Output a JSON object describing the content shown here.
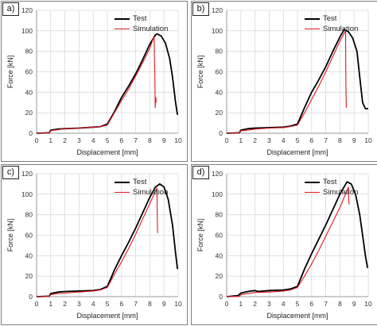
{
  "chart_data": [
    {
      "type": "line",
      "panel_label": "a)",
      "xlabel": "Displacement [mm]",
      "ylabel": "Force [kN]",
      "xlim": [
        0,
        10
      ],
      "ylim": [
        0,
        120
      ],
      "xticks": [
        0,
        1,
        2,
        3,
        4,
        5,
        6,
        7,
        8,
        9,
        10
      ],
      "yticks": [
        0,
        20,
        40,
        60,
        80,
        100,
        120
      ],
      "grid": true,
      "legend_position": "top-right",
      "series": [
        {
          "name": "Test",
          "color": "#000000",
          "x": [
            0,
            0.9,
            1.0,
            1.5,
            2,
            3,
            4,
            4.5,
            5,
            5.5,
            6,
            6.5,
            7,
            7.5,
            8,
            8.4,
            8.5,
            8.8,
            9.1,
            9.4,
            9.6,
            9.8,
            9.95
          ],
          "y": [
            0,
            0.5,
            3,
            4,
            4.5,
            5,
            6,
            6.5,
            9,
            21,
            35,
            46,
            58,
            72,
            87,
            96,
            97,
            95,
            88,
            73,
            55,
            32,
            18
          ]
        },
        {
          "name": "Simulation",
          "color": "#e0191f",
          "x": [
            0,
            0.9,
            1.0,
            1.5,
            2,
            3,
            4,
            4.5,
            5,
            5.5,
            6,
            6.5,
            7,
            7.5,
            8,
            8.3,
            8.35,
            8.38,
            8.42,
            8.45
          ],
          "y": [
            0,
            0.3,
            2.5,
            3.5,
            4.5,
            5,
            6,
            6.5,
            8,
            20,
            32,
            43,
            56,
            69,
            83,
            95,
            60,
            25,
            35,
            30
          ]
        }
      ]
    },
    {
      "type": "line",
      "panel_label": "b)",
      "xlabel": "Displacement [mm]",
      "ylabel": "Force [kN]",
      "xlim": [
        0,
        10
      ],
      "ylim": [
        0,
        120
      ],
      "xticks": [
        0,
        1,
        2,
        3,
        4,
        5,
        6,
        7,
        8,
        9,
        10
      ],
      "yticks": [
        0,
        20,
        40,
        60,
        80,
        100,
        120
      ],
      "grid": true,
      "legend_position": "top-right",
      "series": [
        {
          "name": "Test",
          "color": "#000000",
          "x": [
            0,
            0.9,
            1.0,
            1.5,
            2,
            3,
            4,
            4.5,
            5,
            5.5,
            6,
            6.5,
            7,
            7.5,
            8,
            8.3,
            8.6,
            8.9,
            9.2,
            9.4,
            9.6,
            9.8,
            10
          ],
          "y": [
            0,
            0.5,
            3,
            4.5,
            5,
            5.5,
            6,
            7,
            9,
            25,
            40,
            52,
            65,
            80,
            94,
            101,
            99,
            93,
            80,
            55,
            30,
            24,
            24
          ]
        },
        {
          "name": "Simulation",
          "color": "#e0191f",
          "x": [
            0,
            0.9,
            1.0,
            1.5,
            2,
            3,
            4,
            4.5,
            5,
            5.5,
            6,
            6.5,
            7,
            7.5,
            8,
            8.4,
            8.42,
            8.45
          ],
          "y": [
            0,
            0.3,
            2.5,
            3,
            4,
            5,
            5.5,
            6.5,
            8,
            20,
            33,
            46,
            60,
            75,
            90,
            100,
            45,
            25
          ]
        }
      ]
    },
    {
      "type": "line",
      "panel_label": "c)",
      "xlabel": "Displacement [mm]",
      "ylabel": "Force [kN]",
      "xlim": [
        0,
        10
      ],
      "ylim": [
        0,
        120
      ],
      "xticks": [
        0,
        1,
        2,
        3,
        4,
        5,
        6,
        7,
        8,
        9,
        10
      ],
      "yticks": [
        0,
        20,
        40,
        60,
        80,
        100,
        120
      ],
      "grid": true,
      "legend_position": "top-right",
      "series": [
        {
          "name": "Test",
          "color": "#000000",
          "x": [
            0,
            0.9,
            1.0,
            1.5,
            2,
            3,
            4,
            4.5,
            5,
            5.5,
            6,
            6.5,
            7,
            7.5,
            8,
            8.4,
            8.7,
            9.0,
            9.3,
            9.6,
            9.8,
            9.95
          ],
          "y": [
            0,
            0.5,
            3,
            4.5,
            5,
            5.5,
            6,
            7,
            10,
            26,
            40,
            53,
            67,
            82,
            97,
            107,
            110,
            107,
            95,
            70,
            45,
            27
          ]
        },
        {
          "name": "Simulation",
          "color": "#e0191f",
          "x": [
            0,
            0.9,
            1.0,
            1.5,
            2,
            3,
            4,
            4.5,
            5,
            5.5,
            6,
            6.5,
            7,
            7.5,
            8,
            8.5,
            8.52,
            8.55
          ],
          "y": [
            0,
            0.3,
            2,
            3,
            3.5,
            4.5,
            5.5,
            6.5,
            9,
            22,
            34,
            47,
            61,
            76,
            91,
            106,
            80,
            62
          ]
        }
      ]
    },
    {
      "type": "line",
      "panel_label": "d)",
      "xlabel": "Displacement [mm]",
      "ylabel": "Force [kN]",
      "xlim": [
        0,
        10
      ],
      "ylim": [
        0,
        120
      ],
      "xticks": [
        0,
        1,
        2,
        3,
        4,
        5,
        6,
        7,
        8,
        9,
        10
      ],
      "yticks": [
        0,
        20,
        40,
        60,
        80,
        100,
        120
      ],
      "grid": true,
      "legend_position": "top-right",
      "series": [
        {
          "name": "Test",
          "color": "#000000",
          "x": [
            0,
            0.8,
            1.0,
            1.5,
            2,
            2.2,
            3,
            4,
            4.5,
            5,
            5.5,
            6,
            6.5,
            7,
            7.5,
            8,
            8.5,
            8.8,
            9.1,
            9.4,
            9.6,
            9.8,
            9.95
          ],
          "y": [
            0,
            1,
            3.5,
            5,
            6,
            5,
            6,
            6.5,
            7.5,
            10,
            27,
            42,
            56,
            70,
            85,
            100,
            112,
            110,
            100,
            80,
            60,
            40,
            28
          ]
        },
        {
          "name": "Simulation",
          "color": "#e0191f",
          "x": [
            0,
            0.9,
            1.0,
            1.5,
            2,
            3,
            4,
            4.5,
            5,
            5.5,
            6,
            6.5,
            7,
            7.5,
            8,
            8.6,
            8.62,
            8.65
          ],
          "y": [
            0,
            0.3,
            2,
            3,
            4,
            4.5,
            5.5,
            6.5,
            9,
            20,
            32,
            45,
            59,
            73,
            87,
            107,
            95,
            90
          ]
        }
      ]
    }
  ]
}
